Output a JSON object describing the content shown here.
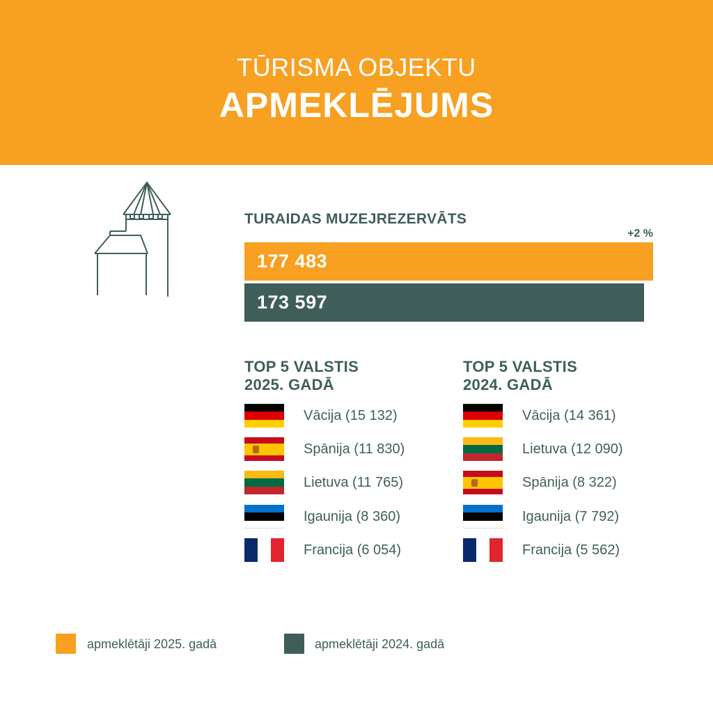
{
  "header": {
    "line1": "TŪRISMA OBJEKTU",
    "line2": "APMEKLĒJUMS"
  },
  "museum": {
    "name": "TURAIDAS MUZEJREZERVĀTS",
    "change_label": "+2 %"
  },
  "chart_data": {
    "type": "bar",
    "orientation": "horizontal",
    "categories": [
      "2025",
      "2024"
    ],
    "values": [
      177483,
      173597
    ],
    "value_labels": [
      "177 483",
      "173 597"
    ],
    "colors": [
      "#f7a021",
      "#3f5e5a"
    ],
    "annotation": "+2 %",
    "xlim": [
      0,
      177483
    ]
  },
  "top_2025": {
    "heading_line1": "TOP 5 VALSTIS",
    "heading_line2": "2025. GADĀ",
    "items": [
      {
        "flag": "germany",
        "label": "Vācija (15 132)"
      },
      {
        "flag": "spain",
        "label": "Spānija (11 830)"
      },
      {
        "flag": "lithuania",
        "label": "Lietuva (11 765)"
      },
      {
        "flag": "estonia",
        "label": "Igaunija (8 360)"
      },
      {
        "flag": "france",
        "label": "Francija (6 054)"
      }
    ]
  },
  "top_2024": {
    "heading_line1": "TOP 5 VALSTIS",
    "heading_line2": "2024. GADĀ",
    "items": [
      {
        "flag": "germany",
        "label": "Vācija (14 361)"
      },
      {
        "flag": "lithuania",
        "label": "Lietuva (12 090)"
      },
      {
        "flag": "spain",
        "label": "Spānija (8 322)"
      },
      {
        "flag": "estonia",
        "label": "Igaunija (7 792)"
      },
      {
        "flag": "france",
        "label": "Francija (5 562)"
      }
    ]
  },
  "legend": [
    {
      "label": "apmeklētāji 2025. gadā",
      "color": "#f7a021"
    },
    {
      "label": "apmeklētāji 2024. gadā",
      "color": "#3f5e5a"
    }
  ],
  "icons": {
    "castle": "castle-tower-icon"
  }
}
